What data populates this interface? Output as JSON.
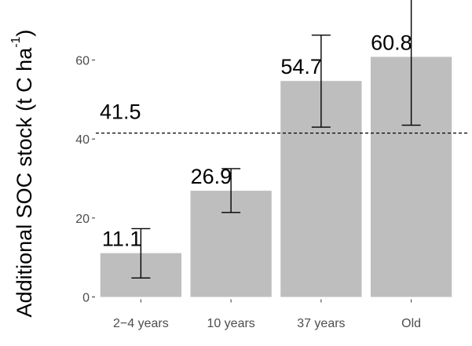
{
  "chart_data": {
    "type": "bar",
    "categories": [
      "2−4 years",
      "10 years",
      "37 years",
      "Old"
    ],
    "values": [
      11.1,
      26.9,
      54.7,
      60.8
    ],
    "value_labels": [
      "11.1",
      "26.9",
      "54.7",
      "60.8"
    ],
    "error_bars": [
      {
        "low": 4.8,
        "high": 17.3
      },
      {
        "low": 21.4,
        "high": 32.5
      },
      {
        "low": 43.0,
        "high": 66.3
      },
      {
        "low": 43.5,
        "high": 80.0
      }
    ],
    "reference_line": {
      "value": 41.5,
      "label": "41.5",
      "style": "dashed"
    },
    "ylabel_main": "Additional SOC stock (t C ha",
    "ylabel_sup": "-1",
    "ylabel_end": ")",
    "xlabel": "",
    "ylim": [
      0,
      75
    ],
    "yticks": [
      0,
      20,
      40,
      60
    ],
    "grid": false,
    "bar_color": "#bebebe",
    "errorbar_color": "#000000",
    "axis_text_color": "#4d4d4d"
  }
}
